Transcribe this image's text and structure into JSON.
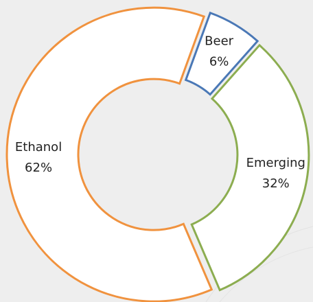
{
  "chart_data": {
    "type": "donut",
    "categories": [
      "Beer",
      "Emerging",
      "Ethanol"
    ],
    "values": [
      6,
      32,
      62
    ],
    "value_labels": [
      "6%",
      "32%",
      "62%"
    ],
    "colors": [
      "#4a78b6",
      "#8cad50",
      "#f0923e"
    ]
  }
}
